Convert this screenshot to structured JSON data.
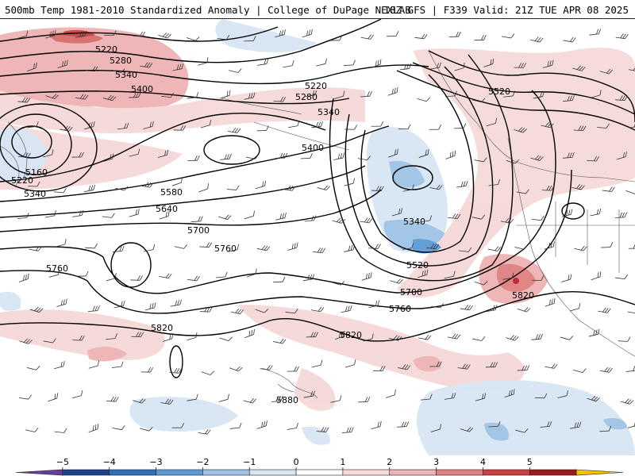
{
  "header": {
    "left": "500mb Temp 1981-2010 Standardized Anomaly | College of DuPage NEXLAB",
    "right": "18Z GFS | F339 Valid: 21Z TUE APR 08 2025"
  },
  "map": {
    "contour_labels": [
      "5220",
      "5280",
      "5340",
      "5400",
      "5160",
      "5220",
      "5340",
      "5580",
      "5640",
      "5700",
      "5760",
      "5760",
      "5820",
      "5220",
      "5280",
      "5340",
      "5400",
      "5340",
      "5520",
      "5700",
      "5760",
      "5820",
      "5520",
      "5820",
      "5880"
    ],
    "field": "500mb geopotential height (dam) with standardized temperature anomaly shading",
    "wind_barbs": true
  },
  "colorbar": {
    "ticks": [
      "−5",
      "−4",
      "−3",
      "−2",
      "−1",
      "0",
      "1",
      "2",
      "3",
      "4",
      "5"
    ],
    "colors": [
      "#6a3d9a",
      "#1f3f8f",
      "#2f6fb8",
      "#5b9bd5",
      "#9fc4e6",
      "#d7e6f4",
      "#ffffff",
      "#f6d9d9",
      "#eeb3b3",
      "#e08080",
      "#c94040",
      "#9b1b1b",
      "#f5c200"
    ]
  }
}
